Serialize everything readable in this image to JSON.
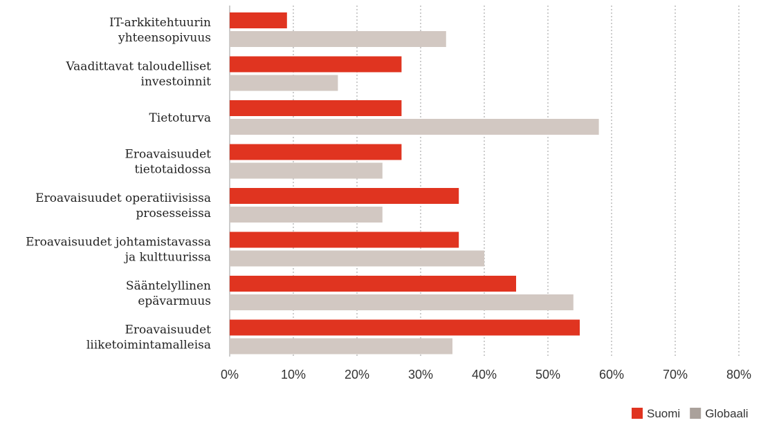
{
  "chart_data": {
    "type": "bar",
    "orientation": "horizontal",
    "categories": [
      [
        "IT-arkkitehtuurin",
        "yhteensopivuus"
      ],
      [
        "Vaadittavat taloudelliset",
        "investoinnit"
      ],
      [
        "Tietoturva"
      ],
      [
        "Eroavaisuudet",
        "tietotaidossa"
      ],
      [
        "Eroavaisuudet operatiivisissa",
        "prosesseissa"
      ],
      [
        "Eroavaisuudet johtamistavassa",
        "ja kulttuurissa"
      ],
      [
        "Sääntelyllinen",
        "epävarmuus"
      ],
      [
        "Eroavaisuudet",
        "liiketoimintamalleisa"
      ]
    ],
    "series": [
      {
        "name": "Suomi",
        "color": "#e03420",
        "values": [
          9,
          27,
          27,
          27,
          36,
          36,
          45,
          55
        ]
      },
      {
        "name": "Globaali",
        "color": "#d2c8c2",
        "values": [
          34,
          17,
          58,
          24,
          24,
          40,
          54,
          35
        ]
      }
    ],
    "xlim": [
      0,
      80
    ],
    "xticks": [
      0,
      10,
      20,
      30,
      40,
      50,
      60,
      70,
      80
    ],
    "xtick_labels": [
      "0%",
      "10%",
      "20%",
      "30%",
      "40%",
      "50%",
      "60%",
      "70%",
      "80%"
    ],
    "grid": "vertical dotted",
    "legend_position": "bottom-right",
    "legend_swatch_colors": {
      "Suomi": "#e03420",
      "Globaali": "#aaa19b"
    }
  }
}
